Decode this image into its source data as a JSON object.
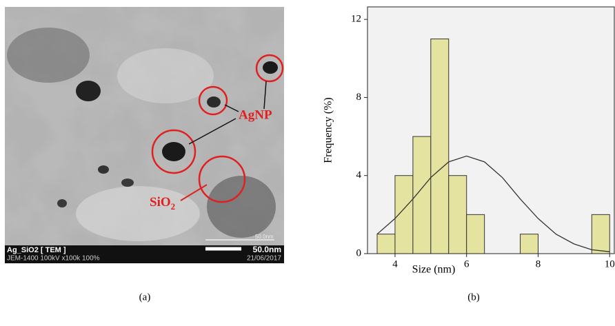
{
  "panel_a": {
    "label": "(a)",
    "particle_label": "AgNP",
    "matrix_label": {
      "base": "SiO",
      "subscript": "2"
    },
    "footer_title": "Ag_SiO2 [ TEM ]",
    "footer_info": "JEM-1400 100kV x100k 100%",
    "scale_text": "50.0nm",
    "scale_text_small": "50.0nm",
    "date": "21/06/2017"
  },
  "chart_data": {
    "type": "histogram",
    "panel_label": "(b)",
    "x_label": "Size (nm)",
    "y_label": "Frequency (%)",
    "bins": [
      3.5,
      4,
      4.5,
      5,
      5.5,
      6,
      6.5,
      7,
      7.5,
      8,
      8.5,
      9,
      9.5,
      10
    ],
    "values": [
      1,
      4,
      6,
      11,
      4,
      2,
      0,
      0,
      1,
      0,
      0,
      0,
      2
    ],
    "color": "#e4e4a0",
    "fit": {
      "x": [
        3.5,
        4,
        4.5,
        5,
        5.5,
        6,
        6.5,
        7,
        7.5,
        8,
        8.5,
        9,
        9.5,
        10
      ],
      "values": [
        1.0,
        1.8,
        2.8,
        3.9,
        4.7,
        5.0,
        4.7,
        3.9,
        2.8,
        1.8,
        1.0,
        0.5,
        0.2,
        0.1
      ],
      "color": "#333333"
    },
    "xlim": [
      3.23,
      10.13
    ],
    "ylim": [
      0,
      12.64
    ],
    "xticks": [
      4,
      6,
      8,
      10
    ],
    "yticks": [
      0,
      4,
      8,
      12
    ]
  }
}
